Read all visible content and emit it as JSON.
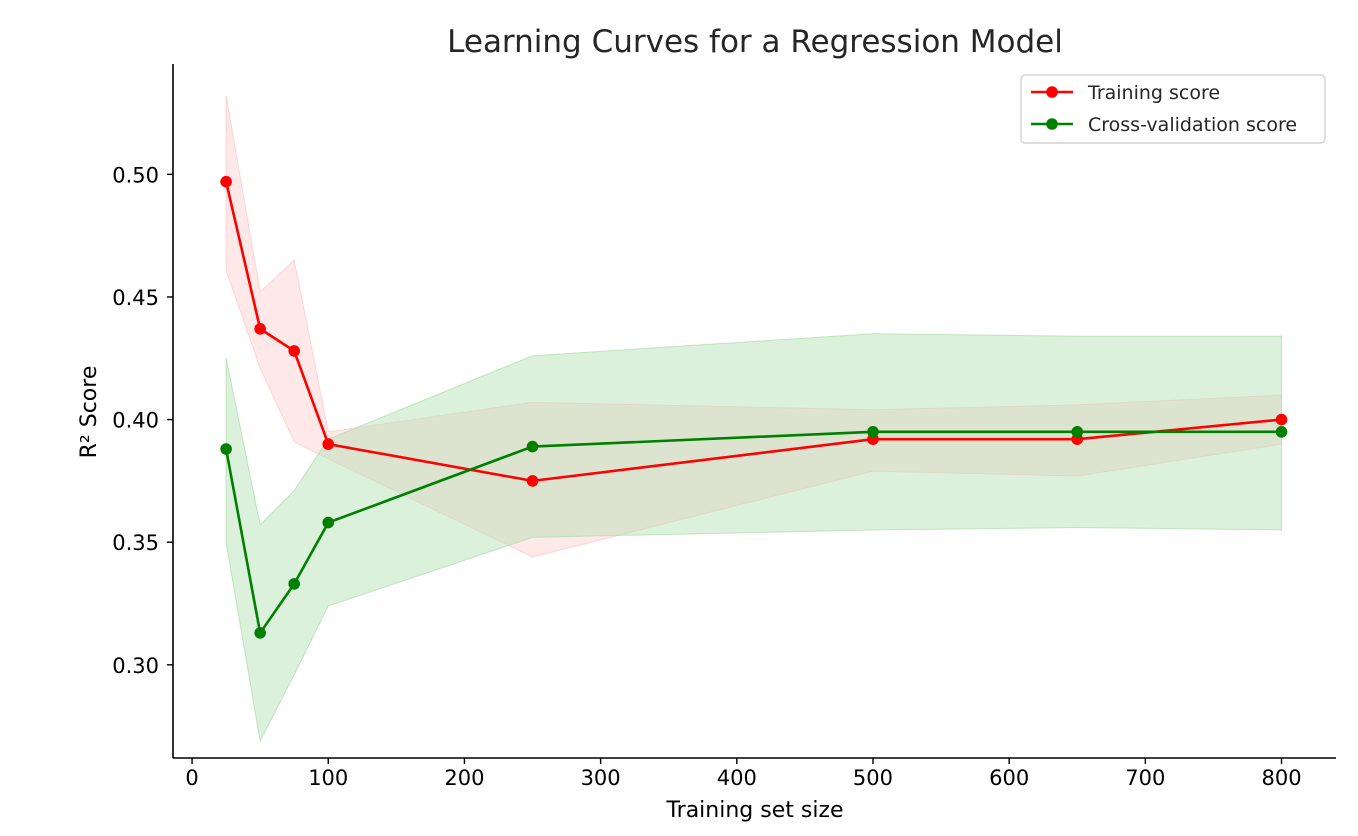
{
  "chart_data": {
    "type": "line",
    "title": "Learning Curves for a Regression Model",
    "xlabel": "Training set size",
    "ylabel": "R² Score",
    "xlim": [
      -14,
      840
    ],
    "ylim": [
      0.262,
      0.545
    ],
    "xticks": [
      0,
      100,
      200,
      300,
      400,
      500,
      600,
      700,
      800
    ],
    "xtick_labels": [
      "0",
      "100",
      "200",
      "300",
      "400",
      "500",
      "600",
      "700",
      "800"
    ],
    "yticks": [
      0.3,
      0.35,
      0.4,
      0.45,
      0.5
    ],
    "ytick_labels": [
      "0.30",
      "0.35",
      "0.40",
      "0.45",
      "0.50"
    ],
    "grid": false,
    "legend_position": "top-right",
    "x": [
      25,
      50,
      75,
      100,
      250,
      500,
      650,
      800
    ],
    "series": [
      {
        "name": "Training score",
        "color": "#ff0000",
        "values": [
          0.497,
          0.437,
          0.428,
          0.39,
          0.375,
          0.392,
          0.392,
          0.4
        ],
        "band_lower": [
          0.461,
          0.421,
          0.391,
          0.384,
          0.344,
          0.379,
          0.377,
          0.39
        ],
        "band_upper": [
          0.532,
          0.452,
          0.465,
          0.395,
          0.407,
          0.404,
          0.406,
          0.41
        ],
        "band_color": "#ffcccc"
      },
      {
        "name": "Cross-validation score",
        "color": "#008000",
        "values": [
          0.388,
          0.313,
          0.333,
          0.358,
          0.389,
          0.395,
          0.395,
          0.395
        ],
        "band_lower": [
          0.35,
          0.269,
          0.296,
          0.324,
          0.352,
          0.355,
          0.356,
          0.355
        ],
        "band_upper": [
          0.425,
          0.357,
          0.371,
          0.392,
          0.426,
          0.435,
          0.434,
          0.434
        ],
        "band_color": "#b2dfb2"
      }
    ]
  }
}
